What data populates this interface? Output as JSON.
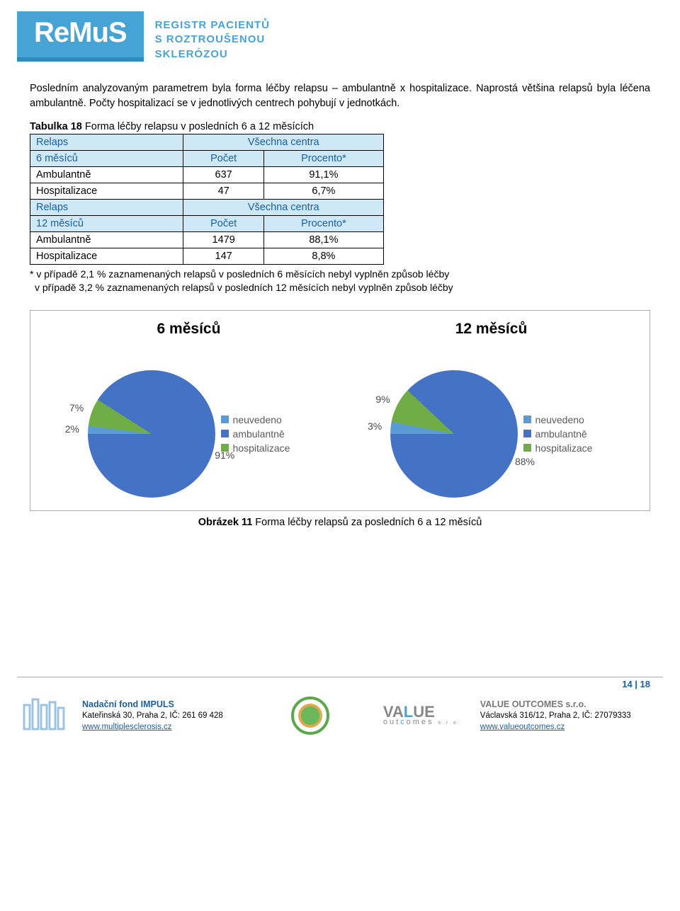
{
  "header": {
    "logo_text": "ReMuS",
    "tagline_l1": "REGISTR PACIENTŮ",
    "tagline_l2": "S ROZTROUŠENOU",
    "tagline_l3": "SKLERÓZOU"
  },
  "paragraph": "Posledním analyzovaným parametrem byla forma léčby relapsu – ambulantně x hospitalizace. Naprostá většina relapsů byla léčena ambulantně. Počty hospitalizací se v jednotlivých centrech pohybují v jednotkách.",
  "table": {
    "caption_bold": "Tabulka 18",
    "caption_rest": " Forma léčby relapsu v posledních 6 a 12 měsících",
    "header_all_centers": "Všechna centra",
    "header_pocet": "Počet",
    "header_procento": "Procento*",
    "row_relaps": "Relaps",
    "row_6m": "6 měsíců",
    "row_12m": "12 měsíců",
    "rows_6m": [
      {
        "label": "Ambulantně",
        "count": "637",
        "pct": "91,1%"
      },
      {
        "label": "Hospitalizace",
        "count": "47",
        "pct": "6,7%"
      }
    ],
    "rows_12m": [
      {
        "label": "Ambulantně",
        "count": "1479",
        "pct": "88,1%"
      },
      {
        "label": "Hospitalizace",
        "count": "147",
        "pct": "8,8%"
      }
    ],
    "footnote_l1": "* v případě 2,1 % zaznamenaných relapsů v posledních 6 měsících nebyl vyplněn způsob léčby",
    "footnote_l2": "  v případě 3,2 % zaznamenaných relapsů v posledních 12 měsících nebyl vyplněn způsob léčby"
  },
  "charts": {
    "title_left": "6 měsíců",
    "title_right": "12 měsíců",
    "legend": [
      {
        "label": "neuvedeno",
        "color": "#5b9bd5"
      },
      {
        "label": "ambulantně",
        "color": "#4472c4"
      },
      {
        "label": "hospitalizace",
        "color": "#70ad47"
      }
    ],
    "pie_6m": {
      "type": "pie",
      "slices": [
        {
          "name": "ambulantně",
          "value": 91,
          "color": "#4472c4",
          "label": "91%"
        },
        {
          "name": "hospitalizace",
          "value": 7,
          "color": "#70ad47",
          "label": "7%"
        },
        {
          "name": "neuvedeno",
          "value": 2,
          "color": "#5b9bd5",
          "label": "2%"
        }
      ],
      "start_angle_deg": 270,
      "background": "#ffffff"
    },
    "pie_12m": {
      "type": "pie",
      "slices": [
        {
          "name": "ambulantně",
          "value": 88,
          "color": "#4472c4",
          "label": "88%"
        },
        {
          "name": "hospitalizace",
          "value": 9,
          "color": "#70ad47",
          "label": "9%"
        },
        {
          "name": "neuvedeno",
          "value": 3,
          "color": "#5b9bd5",
          "label": "3%"
        }
      ],
      "start_angle_deg": 270,
      "background": "#ffffff"
    }
  },
  "figure_caption_bold": "Obrázek 11",
  "figure_caption_rest": " Forma léčby relapsů za posledních 6 a 12 měsíců",
  "page_number": "14 | 18",
  "footer": {
    "left": {
      "title": "Nadační fond IMPULS",
      "addr": "Kateřinská 30, Praha 2, IČ: 261 69 428",
      "link": "www.multiplesclerosis.cz"
    },
    "right": {
      "title": "VALUE OUTCOMES s.r.o.",
      "addr": "Václavská 316/12, Praha 2, IČ: 27079333",
      "link": "www.valueoutcomes.cz"
    }
  }
}
